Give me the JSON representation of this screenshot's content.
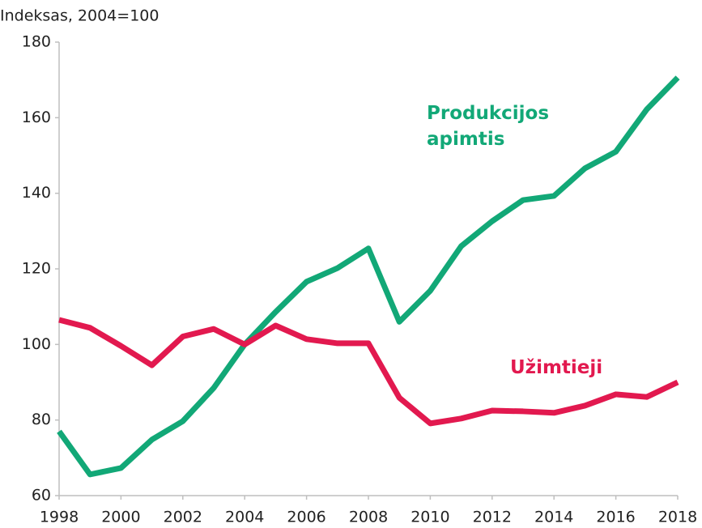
{
  "chart_data": {
    "type": "line",
    "axis_title": "Indeksas, 2004=100",
    "x": [
      1998,
      1999,
      2000,
      2001,
      2002,
      2003,
      2004,
      2005,
      2006,
      2007,
      2008,
      2009,
      2010,
      2011,
      2012,
      2013,
      2014,
      2015,
      2016,
      2017,
      2018
    ],
    "series": [
      {
        "name": "Produkcijos apimtis",
        "color": "#12a877",
        "values": [
          77,
          65.6,
          67.3,
          74.8,
          79.7,
          88.5,
          100,
          108.6,
          116.6,
          120.2,
          125.4,
          106,
          114.2,
          126,
          132.6,
          138.2,
          139.3,
          146.6,
          151,
          162.2,
          170.6
        ]
      },
      {
        "name": "Užimtieji",
        "color": "#e2194f",
        "values": [
          106.5,
          104.4,
          99.6,
          94.5,
          102.1,
          104.1,
          100,
          105,
          101.4,
          100.3,
          100.3,
          85.9,
          79.1,
          80.4,
          82.5,
          82.3,
          81.9,
          83.8,
          86.8,
          86.1,
          90
        ]
      }
    ],
    "xlim": [
      1998,
      2018
    ],
    "xticks": [
      1998,
      2000,
      2002,
      2004,
      2006,
      2008,
      2010,
      2012,
      2014,
      2016,
      2018
    ],
    "ylim": [
      60,
      180
    ],
    "yticks": [
      60,
      80,
      100,
      120,
      140,
      160,
      180
    ],
    "grid": false
  }
}
